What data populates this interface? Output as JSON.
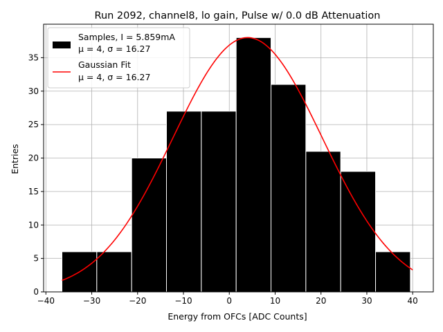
{
  "chart_data": {
    "type": "bar",
    "title": "Run 2092, channel8, lo gain, Pulse w/ 0.0 dB Attenuation",
    "xlabel": "Energy from OFCs [ADC Counts]",
    "ylabel": "Entries",
    "xlim": [
      -40.5,
      44.5
    ],
    "ylim": [
      0,
      40
    ],
    "xticks": [
      -40,
      -30,
      -20,
      -10,
      0,
      10,
      20,
      30,
      40
    ],
    "yticks": [
      0,
      5,
      10,
      15,
      20,
      25,
      30,
      35
    ],
    "grid": true,
    "bins": [
      {
        "x0": -36.5,
        "x1": -28.9,
        "count": 6
      },
      {
        "x0": -28.9,
        "x1": -21.3,
        "count": 6
      },
      {
        "x0": -21.3,
        "x1": -13.7,
        "count": 20
      },
      {
        "x0": -13.7,
        "x1": -6.1,
        "count": 27
      },
      {
        "x0": -6.1,
        "x1": 1.5,
        "count": 27
      },
      {
        "x0": 1.5,
        "x1": 9.1,
        "count": 38
      },
      {
        "x0": 9.1,
        "x1": 16.7,
        "count": 31
      },
      {
        "x0": 16.7,
        "x1": 24.3,
        "count": 21
      },
      {
        "x0": 24.3,
        "x1": 31.9,
        "count": 18
      },
      {
        "x0": 31.9,
        "x1": 39.5,
        "count": 6
      }
    ],
    "fit": {
      "type": "gaussian",
      "amplitude": 38,
      "mean": 4,
      "sigma": 16.27,
      "x_range": [
        -36.5,
        40
      ],
      "color": "#ff0000"
    },
    "bar_color": "#000000",
    "legend": {
      "placement": "top-left",
      "entries": [
        {
          "line1": "Samples, I = 5.859mA",
          "line2": "μ = 4, σ = 16.27"
        },
        {
          "line1": "Gaussian Fit",
          "line2": "μ = 4, σ = 16.27"
        }
      ]
    }
  }
}
